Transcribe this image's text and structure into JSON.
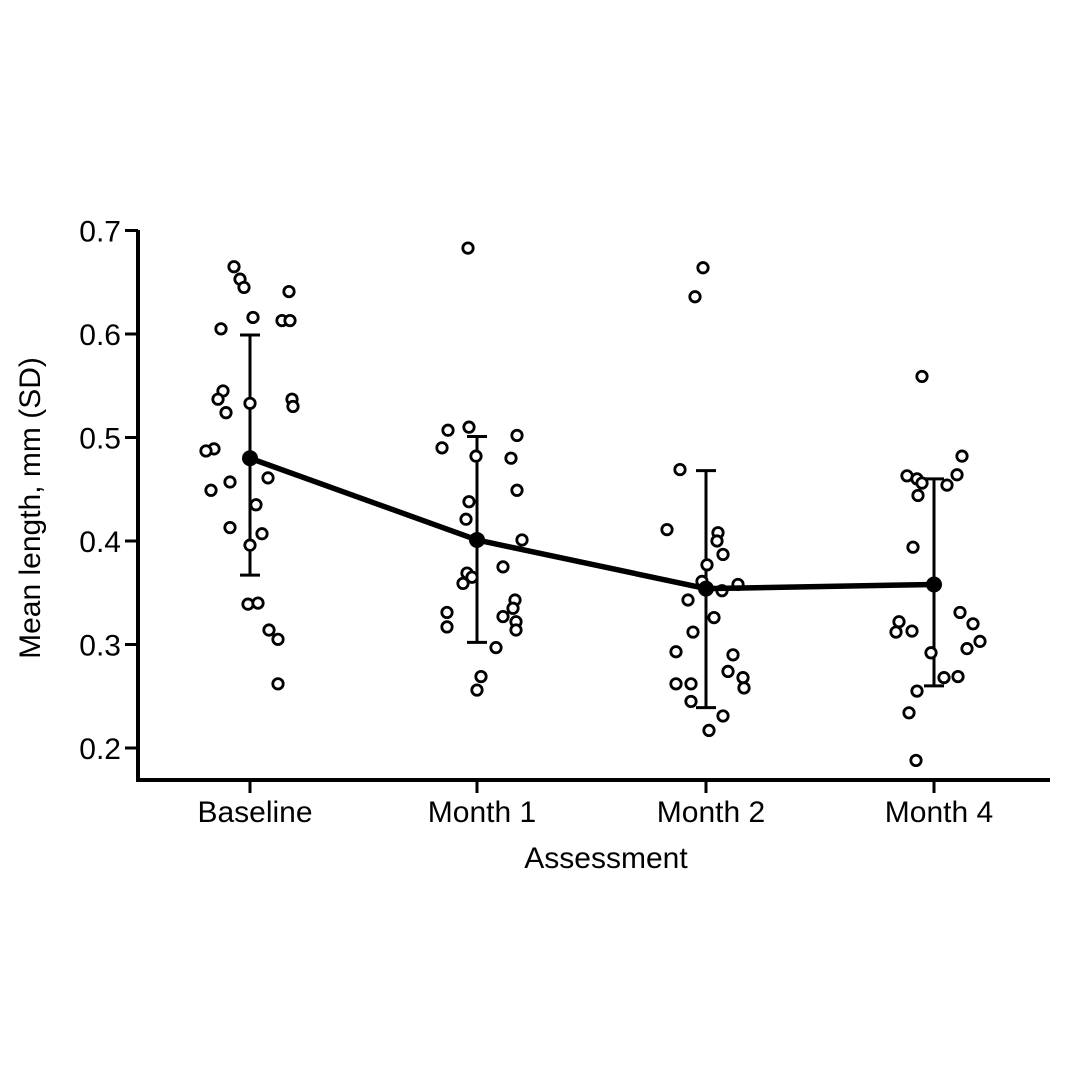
{
  "page": {
    "background": "#ffffff",
    "ink": "#000000"
  },
  "chart_data": {
    "type": "scatter",
    "title": "",
    "xlabel": "Assessment",
    "ylabel": "Mean length, mm (SD)",
    "categories": [
      "Baseline",
      "Month 1",
      "Month 2",
      "Month 4"
    ],
    "yticks": [
      0.2,
      0.3,
      0.4,
      0.5,
      0.6,
      0.7
    ],
    "ylim": [
      0.17,
      0.7
    ],
    "grid": false,
    "legend": "none",
    "marker": "open-circle",
    "summary": "Individual subject values (open circles, jittered) with group mean (filled dot), SD error bars, and a line connecting group means",
    "series": [
      {
        "name": "mean",
        "values": [
          0.48,
          0.401,
          0.354,
          0.358
        ]
      },
      {
        "name": "sd_low",
        "values": [
          0.367,
          0.302,
          0.239,
          0.26
        ]
      },
      {
        "name": "sd_high",
        "values": [
          0.599,
          0.501,
          0.468,
          0.46
        ]
      }
    ],
    "groups": [
      {
        "label": "Baseline",
        "mean": 0.48,
        "sd_low": 0.367,
        "sd_high": 0.599,
        "points": [
          [
            -16,
            0.665
          ],
          [
            -10,
            0.653
          ],
          [
            -6,
            0.645
          ],
          [
            39,
            0.641
          ],
          [
            3,
            0.616
          ],
          [
            32,
            0.613
          ],
          [
            40,
            0.613
          ],
          [
            -29,
            0.605
          ],
          [
            -27,
            0.545
          ],
          [
            -32,
            0.537
          ],
          [
            42,
            0.537
          ],
          [
            0,
            0.533
          ],
          [
            43,
            0.53
          ],
          [
            -24,
            0.524
          ],
          [
            -36,
            0.489
          ],
          [
            -44,
            0.487
          ],
          [
            18,
            0.461
          ],
          [
            -20,
            0.457
          ],
          [
            -39,
            0.449
          ],
          [
            6,
            0.435
          ],
          [
            -20,
            0.413
          ],
          [
            12,
            0.407
          ],
          [
            0,
            0.396
          ],
          [
            -2,
            0.339
          ],
          [
            8,
            0.34
          ],
          [
            19,
            0.314
          ],
          [
            28,
            0.305
          ],
          [
            28,
            0.262
          ]
        ]
      },
      {
        "label": "Month 1",
        "mean": 0.401,
        "sd_low": 0.302,
        "sd_high": 0.501,
        "points": [
          [
            -9,
            0.683
          ],
          [
            -8,
            0.51
          ],
          [
            -29,
            0.507
          ],
          [
            40,
            0.502
          ],
          [
            -35,
            0.49
          ],
          [
            -1,
            0.482
          ],
          [
            34,
            0.48
          ],
          [
            40,
            0.449
          ],
          [
            -8,
            0.438
          ],
          [
            -11,
            0.421
          ],
          [
            45,
            0.401
          ],
          [
            26,
            0.375
          ],
          [
            -10,
            0.369
          ],
          [
            -5,
            0.365
          ],
          [
            -14,
            0.359
          ],
          [
            38,
            0.343
          ],
          [
            36,
            0.335
          ],
          [
            26,
            0.327
          ],
          [
            39,
            0.322
          ],
          [
            39,
            0.314
          ],
          [
            -30,
            0.331
          ],
          [
            -30,
            0.317
          ],
          [
            19,
            0.297
          ],
          [
            4,
            0.269
          ],
          [
            0,
            0.256
          ]
        ]
      },
      {
        "label": "Month 2",
        "mean": 0.354,
        "sd_low": 0.239,
        "sd_high": 0.468,
        "points": [
          [
            -3,
            0.664
          ],
          [
            -11,
            0.636
          ],
          [
            -26,
            0.469
          ],
          [
            -39,
            0.411
          ],
          [
            12,
            0.408
          ],
          [
            11,
            0.4
          ],
          [
            17,
            0.387
          ],
          [
            1,
            0.377
          ],
          [
            -4,
            0.361
          ],
          [
            32,
            0.358
          ],
          [
            16,
            0.352
          ],
          [
            -18,
            0.343
          ],
          [
            8,
            0.326
          ],
          [
            -13,
            0.312
          ],
          [
            -30,
            0.293
          ],
          [
            27,
            0.29
          ],
          [
            22,
            0.274
          ],
          [
            37,
            0.268
          ],
          [
            38,
            0.258
          ],
          [
            -30,
            0.262
          ],
          [
            -15,
            0.262
          ],
          [
            -15,
            0.245
          ],
          [
            17,
            0.231
          ],
          [
            3,
            0.217
          ]
        ]
      },
      {
        "label": "Month 4",
        "mean": 0.358,
        "sd_low": 0.26,
        "sd_high": 0.46,
        "points": [
          [
            -12,
            0.559
          ],
          [
            28,
            0.482
          ],
          [
            23,
            0.464
          ],
          [
            -27,
            0.463
          ],
          [
            -17,
            0.46
          ],
          [
            -12,
            0.456
          ],
          [
            13,
            0.454
          ],
          [
            -16,
            0.444
          ],
          [
            -21,
            0.394
          ],
          [
            26,
            0.331
          ],
          [
            -35,
            0.322
          ],
          [
            -22,
            0.313
          ],
          [
            -38,
            0.312
          ],
          [
            39,
            0.32
          ],
          [
            46,
            0.303
          ],
          [
            33,
            0.296
          ],
          [
            -3,
            0.292
          ],
          [
            24,
            0.269
          ],
          [
            10,
            0.268
          ],
          [
            -17,
            0.255
          ],
          [
            -25,
            0.234
          ],
          [
            -18,
            0.188
          ]
        ]
      }
    ]
  }
}
